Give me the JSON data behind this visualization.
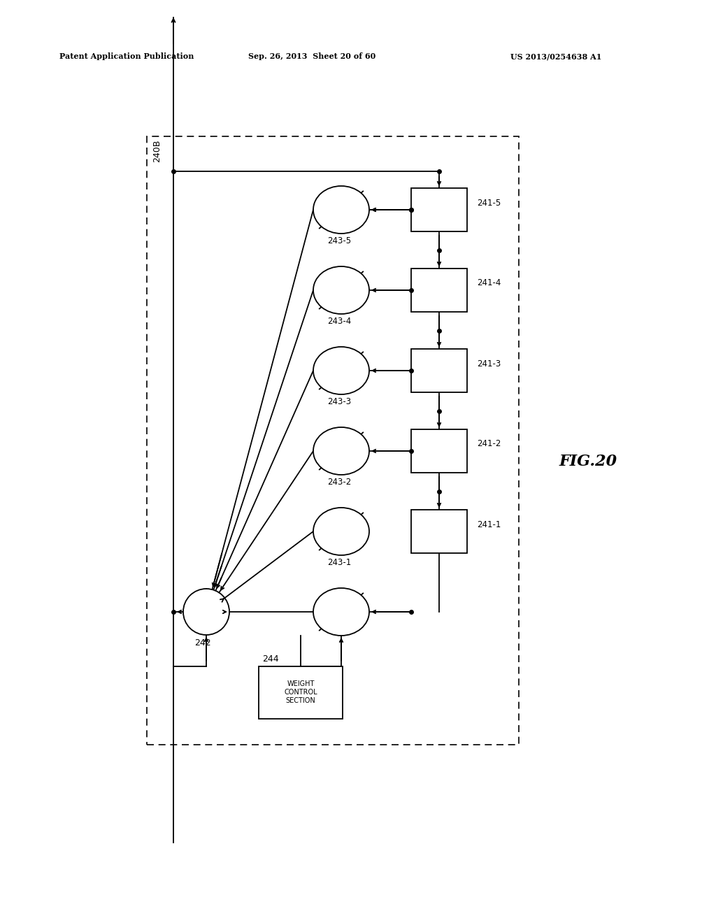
{
  "header_left": "Patent Application Publication",
  "header_mid": "Sep. 26, 2013  Sheet 20 of 60",
  "header_right": "US 2013/0254638 A1",
  "fig_label": "FIG.20",
  "box_label": "240B",
  "sum_label": "242",
  "wcs_label": "244",
  "wcs_text": "WEIGHT\nCONTROL\nSECTION",
  "background": "#ffffff",
  "lc": "#000000",
  "delay_labels": [
    "241-5",
    "241-4",
    "241-3",
    "241-2",
    "241-1"
  ],
  "mult_labels": [
    "243-5",
    "243-4",
    "243-3",
    "243-2",
    "243-1"
  ]
}
